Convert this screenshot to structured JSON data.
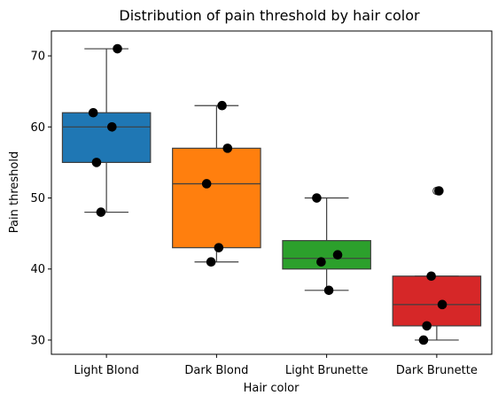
{
  "chart_data": {
    "type": "box",
    "title": "Distribution of pain threshold by hair color",
    "xlabel": "Hair color",
    "ylabel": "Pain threshold",
    "ylim": [
      28,
      73.5
    ],
    "yticks": [
      30,
      40,
      50,
      60,
      70
    ],
    "grid": false,
    "legend": "none",
    "categories": [
      "Light Blond",
      "Dark Blond",
      "Light Brunette",
      "Dark Brunette"
    ],
    "colors": [
      "#1f77b4",
      "#ff7f0e",
      "#2ca02c",
      "#d62728"
    ],
    "boxes": [
      {
        "category": "Light Blond",
        "whisker_low": 48,
        "q1": 55,
        "median": 60,
        "q3": 62,
        "whisker_high": 71,
        "outliers": []
      },
      {
        "category": "Dark Blond",
        "whisker_low": 41,
        "q1": 43,
        "median": 52,
        "q3": 57,
        "whisker_high": 63,
        "outliers": []
      },
      {
        "category": "Light Brunette",
        "whisker_low": 37,
        "q1": 40,
        "median": 41.5,
        "q3": 44,
        "whisker_high": 50,
        "outliers": []
      },
      {
        "category": "Dark Brunette",
        "whisker_low": 30,
        "q1": 32,
        "median": 35,
        "q3": 39,
        "whisker_high": 39,
        "outliers": [
          51
        ]
      }
    ],
    "points": [
      {
        "category": "Light Blond",
        "values": [
          62,
          60,
          71,
          55,
          48
        ]
      },
      {
        "category": "Dark Blond",
        "values": [
          63,
          57,
          52,
          41,
          43
        ]
      },
      {
        "category": "Light Brunette",
        "values": [
          42,
          50,
          41,
          37
        ]
      },
      {
        "category": "Dark Brunette",
        "values": [
          32,
          39,
          51,
          30,
          35
        ]
      }
    ]
  }
}
